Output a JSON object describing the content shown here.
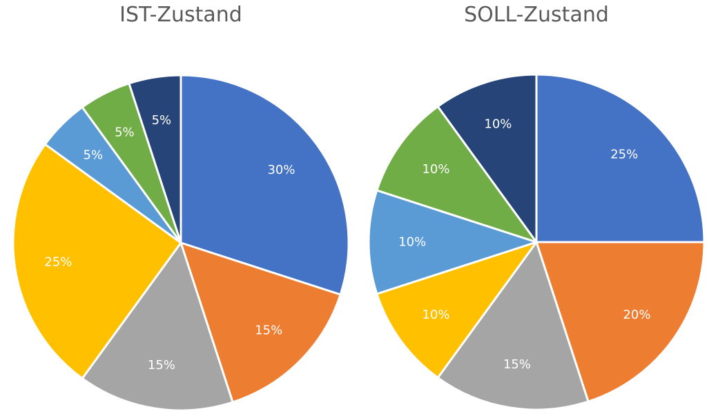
{
  "chart_data": [
    {
      "type": "pie",
      "title": "IST-Zustand",
      "slices": [
        {
          "value": 30,
          "label": "30%",
          "color": "#4472C4"
        },
        {
          "value": 15,
          "label": "15%",
          "color": "#ED7D31"
        },
        {
          "value": 15,
          "label": "15%",
          "color": "#A5A5A5"
        },
        {
          "value": 25,
          "label": "25%",
          "color": "#FFC000"
        },
        {
          "value": 5,
          "label": "5%",
          "color": "#5B9BD5"
        },
        {
          "value": 5,
          "label": "5%",
          "color": "#70AD47"
        },
        {
          "value": 5,
          "label": "5%",
          "color": "#264478"
        }
      ]
    },
    {
      "type": "pie",
      "title": "SOLL-Zustand",
      "slices": [
        {
          "value": 25,
          "label": "25%",
          "color": "#4472C4"
        },
        {
          "value": 20,
          "label": "20%",
          "color": "#ED7D31"
        },
        {
          "value": 15,
          "label": "15%",
          "color": "#A5A5A5"
        },
        {
          "value": 10,
          "label": "10%",
          "color": "#FFC000"
        },
        {
          "value": 10,
          "label": "10%",
          "color": "#5B9BD5"
        },
        {
          "value": 10,
          "label": "10%",
          "color": "#70AD47"
        },
        {
          "value": 10,
          "label": "10%",
          "color": "#264478"
        }
      ]
    }
  ]
}
